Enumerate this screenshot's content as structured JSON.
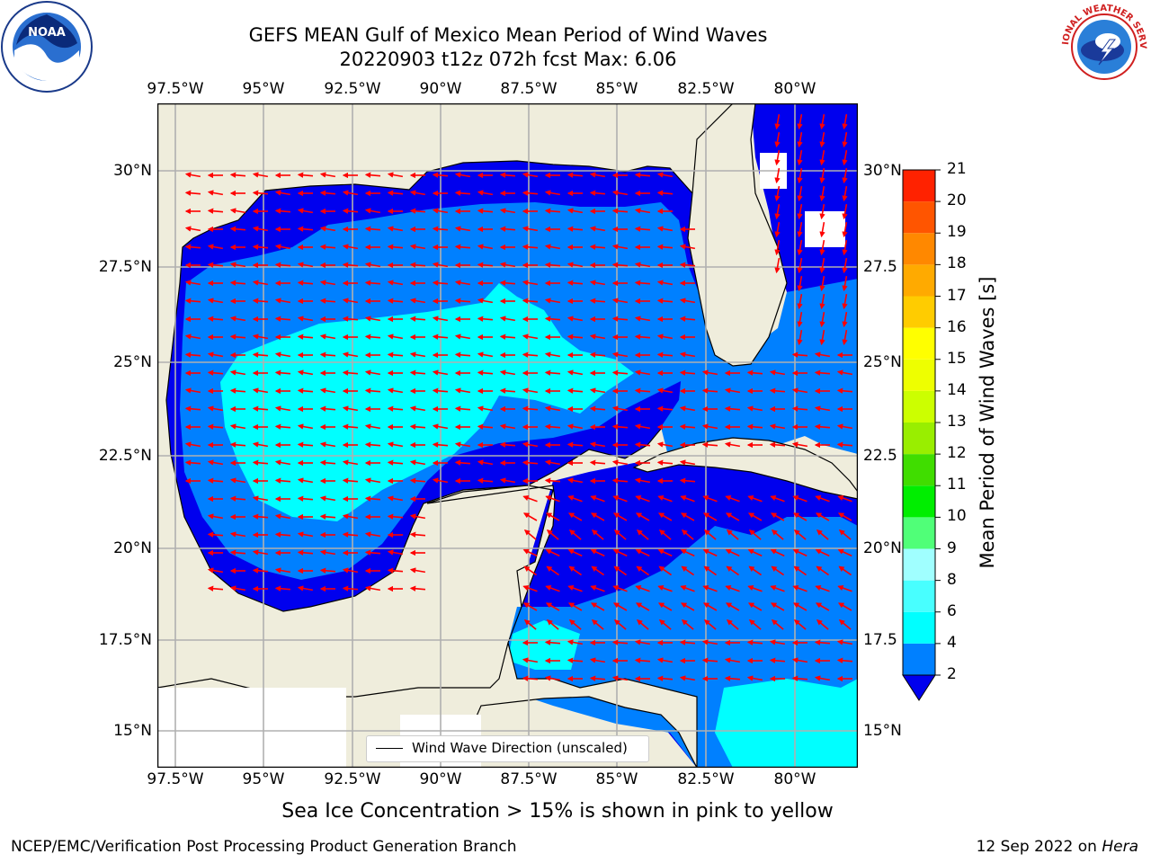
{
  "title": {
    "line1": "GEFS MEAN Gulf of Mexico Mean Period of Wind Waves",
    "line2": "20220903 t12z 072h fcst   Max: 6.06"
  },
  "map": {
    "lon_labels": [
      "97.5°W",
      "95°W",
      "92.5°W",
      "90°W",
      "87.5°W",
      "85°W",
      "82.5°W",
      "80°W"
    ],
    "lat_labels_left": [
      "30°N",
      "27.5°N",
      "25°N",
      "22.5°N",
      "20°N",
      "17.5°N",
      "15°N"
    ],
    "lat_labels_right": [
      "30°N",
      "27.5",
      "25°N",
      "22.5",
      "20°N",
      "17.5",
      "15°N"
    ],
    "colors": {
      "land": "#efeddc",
      "grid": "#b0b0b0",
      "band_2_4": "#0000ee",
      "band_4_6": "#0080ff",
      "band_6_8": "#00ffff",
      "arrow": "#ff0000"
    },
    "legend_label": "Wind Wave Direction (unscaled)"
  },
  "colorbar": {
    "title": "Mean Period of Wind Waves [s]",
    "tick_labels": [
      "2",
      "4",
      "6",
      "8",
      "9",
      "10",
      "11",
      "12",
      "13",
      "14",
      "15",
      "16",
      "17",
      "18",
      "19",
      "20",
      "21"
    ],
    "band_colors": [
      "#0080ff",
      "#00ffff",
      "#48ffff",
      "#a0ffff",
      "#50ff78",
      "#00ee00",
      "#40dd00",
      "#99ee00",
      "#ccff00",
      "#eeff00",
      "#ffff00",
      "#ffcc00",
      "#ffaa00",
      "#ff8800",
      "#ff5500",
      "#ff2200",
      "#ff0000"
    ],
    "under_color": "#0000ee"
  },
  "subtitle": "Sea Ice Concentration > 15% is shown in pink to yellow",
  "footer": {
    "left": "NCEP/EMC/Verification Post Processing Product Generation Branch",
    "date": "12 Sep 2022 on ",
    "machine": "Hera"
  },
  "logos": {
    "noaa_text": "NOAA",
    "nws_text": "NATIONAL WEATHER SERVICE"
  }
}
